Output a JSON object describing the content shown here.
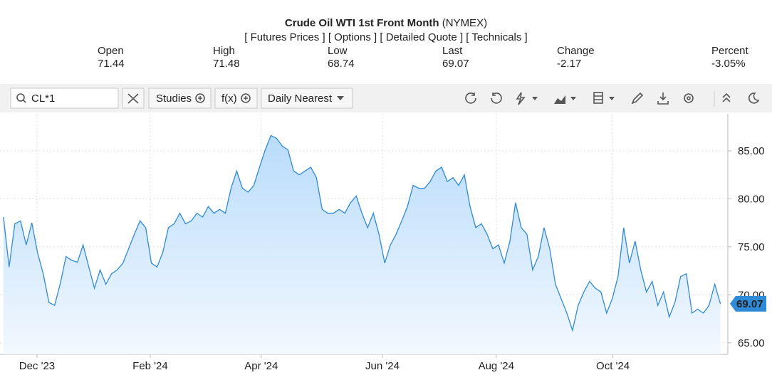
{
  "header": {
    "title": "Crude Oil WTI 1st Front Month",
    "exchange": "(NYMEX)",
    "links": [
      "[ Futures Prices ]",
      "[ Options ]",
      "[ Detailed Quote ]",
      "[ Technicals ]"
    ]
  },
  "stats": [
    {
      "label": "Open",
      "value": "71.44"
    },
    {
      "label": "High",
      "value": "71.48"
    },
    {
      "label": "Low",
      "value": "68.74"
    },
    {
      "label": "Last",
      "value": "69.07"
    },
    {
      "label": "Change",
      "value": "-2.17"
    },
    {
      "label": "Percent",
      "value": "-3.05%"
    }
  ],
  "toolbar": {
    "symbol": "CL*1",
    "studies": "Studies",
    "fx": "f(x)",
    "period": "Daily Nearest"
  },
  "chart_data": {
    "type": "area",
    "color": "#2f8ad8",
    "grid": true,
    "values": [
      78.1,
      72.9,
      77.4,
      77.7,
      75.2,
      77.5,
      74.4,
      72.2,
      69.2,
      68.9,
      71.2,
      74.0,
      73.6,
      73.4,
      75.2,
      72.9,
      70.7,
      72.6,
      71.1,
      72.2,
      72.6,
      73.3,
      74.8,
      76.3,
      77.7,
      77.0,
      73.3,
      72.9,
      74.4,
      77.0,
      77.4,
      78.5,
      77.4,
      77.7,
      78.5,
      78.1,
      79.2,
      78.5,
      78.9,
      78.5,
      81.1,
      82.9,
      81.1,
      80.7,
      81.4,
      83.3,
      85.1,
      86.6,
      86.3,
      85.5,
      85.1,
      82.9,
      82.5,
      82.9,
      83.3,
      82.2,
      78.9,
      78.5,
      78.5,
      78.9,
      78.5,
      79.6,
      80.3,
      78.5,
      77.0,
      78.5,
      76.3,
      73.3,
      75.2,
      76.3,
      77.7,
      79.2,
      81.4,
      81.1,
      81.1,
      81.8,
      82.9,
      83.3,
      81.8,
      82.2,
      81.4,
      82.5,
      79.2,
      77.0,
      77.4,
      76.3,
      74.8,
      75.2,
      73.3,
      75.6,
      79.6,
      77.0,
      76.3,
      72.6,
      74.0,
      77.0,
      74.8,
      71.1,
      69.6,
      68.1,
      66.3,
      68.9,
      70.3,
      71.4,
      70.7,
      70.3,
      68.1,
      69.6,
      71.9,
      77.0,
      73.3,
      75.6,
      72.6,
      70.3,
      71.4,
      68.9,
      70.3,
      67.7,
      69.2,
      71.9,
      72.2,
      68.1,
      68.5,
      68.1,
      68.9,
      71.1,
      69.07
    ],
    "xlim": [
      -0.6,
      127.3
    ],
    "xticks": [
      {
        "value": 5.9,
        "label": "Dec '23"
      },
      {
        "value": 25.8,
        "label": "Feb '24"
      },
      {
        "value": 45.3,
        "label": "Apr '24"
      },
      {
        "value": 66.6,
        "label": "Jun '24"
      },
      {
        "value": 86.6,
        "label": "Aug '24"
      },
      {
        "value": 107.1,
        "label": "Oct '24"
      }
    ],
    "ylim": [
      63.8,
      88.85
    ],
    "yticks": [
      {
        "value": 65,
        "label": "65.00"
      },
      {
        "value": 70,
        "label": "70.00"
      },
      {
        "value": 75,
        "label": "75.00"
      },
      {
        "value": 80,
        "label": "80.00"
      },
      {
        "value": 85,
        "label": "85.00"
      }
    ]
  }
}
